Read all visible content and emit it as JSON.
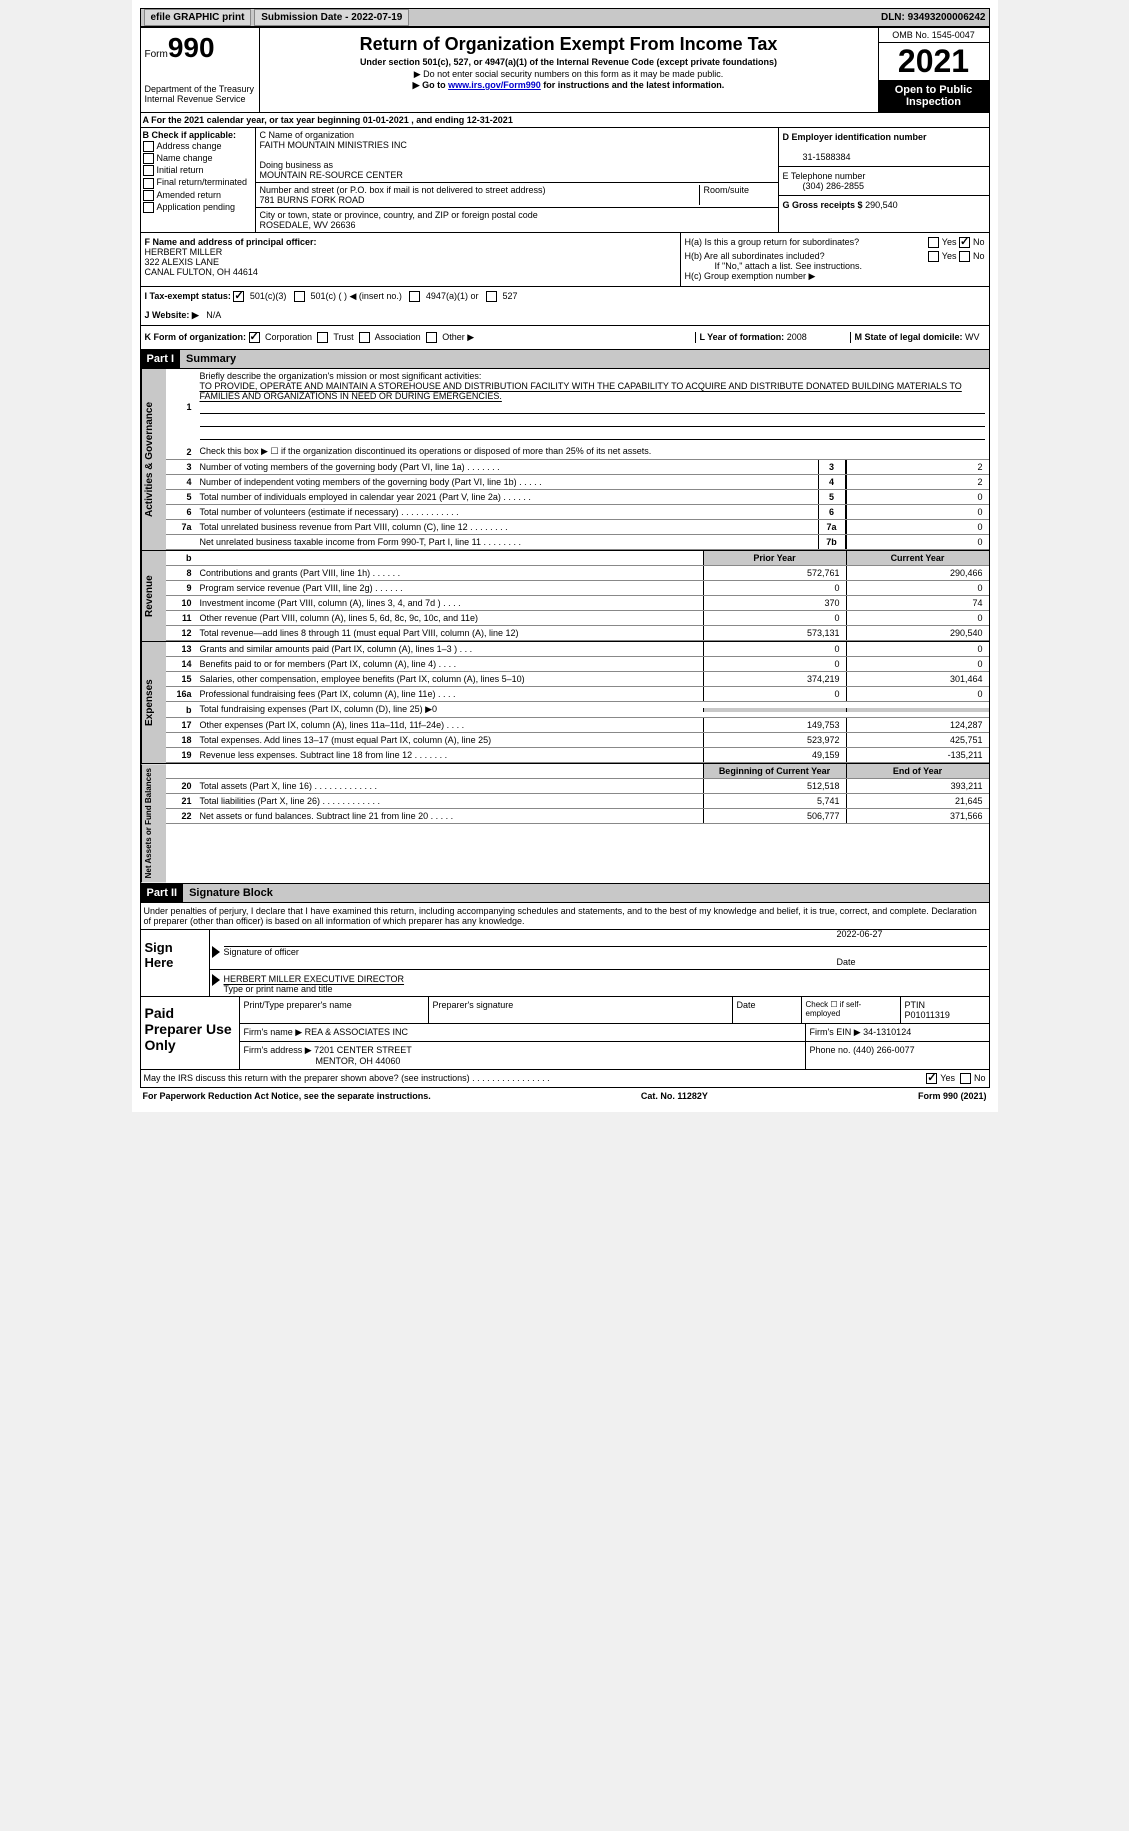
{
  "topbar": {
    "efile": "efile GRAPHIC print",
    "submission_label": "Submission Date - 2022-07-19",
    "dln_label": "DLN: 93493200006242"
  },
  "header": {
    "form_prefix": "Form",
    "form_number": "990",
    "dept": "Department of the Treasury",
    "irs": "Internal Revenue Service",
    "title": "Return of Organization Exempt From Income Tax",
    "subtitle": "Under section 501(c), 527, or 4947(a)(1) of the Internal Revenue Code (except private foundations)",
    "note1": "▶ Do not enter social security numbers on this form as it may be made public.",
    "note2_pre": "▶ Go to ",
    "note2_link": "www.irs.gov/Form990",
    "note2_post": " for instructions and the latest information.",
    "omb": "OMB No. 1545-0047",
    "year": "2021",
    "open_public": "Open to Public Inspection"
  },
  "row_a": {
    "text": "A For the 2021 calendar year, or tax year beginning 01-01-2021    , and ending 12-31-2021"
  },
  "section_b": {
    "label": "B Check if applicable:",
    "items": [
      "Address change",
      "Name change",
      "Initial return",
      "Final return/terminated",
      "Amended return",
      "Application pending"
    ]
  },
  "section_c": {
    "name_label": "C Name of organization",
    "name": "FAITH MOUNTAIN MINISTRIES INC",
    "dba_label": "Doing business as",
    "dba": "MOUNTAIN RE-SOURCE CENTER",
    "street_label": "Number and street (or P.O. box if mail is not delivered to street address)",
    "room_label": "Room/suite",
    "street": "781 BURNS FORK ROAD",
    "city_label": "City or town, state or province, country, and ZIP or foreign postal code",
    "city": "ROSEDALE, WV  26636"
  },
  "section_d": {
    "ein_label": "D Employer identification number",
    "ein": "31-1588384",
    "phone_label": "E Telephone number",
    "phone": "(304) 286-2855",
    "receipts_label": "G Gross receipts $",
    "receipts": "290,540"
  },
  "section_f": {
    "label": "F  Name and address of principal officer:",
    "name": "HERBERT MILLER",
    "addr1": "322 ALEXIS LANE",
    "addr2": "CANAL FULTON, OH  44614"
  },
  "section_h": {
    "ha_label": "H(a)  Is this a group return for subordinates?",
    "hb_label": "H(b)  Are all subordinates included?",
    "hb_note": "If \"No,\" attach a list. See instructions.",
    "hc_label": "H(c)  Group exemption number ▶",
    "yes": "Yes",
    "no": "No"
  },
  "section_i": {
    "label": "I  Tax-exempt status:",
    "opt1": "501(c)(3)",
    "opt2": "501(c) (  ) ◀ (insert no.)",
    "opt3": "4947(a)(1) or",
    "opt4": "527"
  },
  "section_j": {
    "label": "J  Website: ▶",
    "value": "N/A"
  },
  "section_k": {
    "label": "K Form of organization:",
    "opts": [
      "Corporation",
      "Trust",
      "Association",
      "Other ▶"
    ]
  },
  "section_l": {
    "year_label": "L Year of formation:",
    "year": "2008",
    "state_label": "M State of legal domicile:",
    "state": "WV"
  },
  "part1": {
    "header": "Part I",
    "title": "Summary",
    "line1_label": "Briefly describe the organization's mission or most significant activities:",
    "mission": "TO PROVIDE, OPERATE AND MAINTAIN A STOREHOUSE AND DISTRIBUTION FACILITY WITH THE CAPABILITY TO ACQUIRE AND DISTRIBUTE DONATED BUILDING MATERIALS TO FAMILIES AND ORGANIZATIONS IN NEED OR DURING EMERGENCIES.",
    "line2": "Check this box ▶ ☐ if the organization discontinued its operations or disposed of more than 25% of its net assets.",
    "side_gov": "Activities & Governance",
    "side_rev": "Revenue",
    "side_exp": "Expenses",
    "side_net": "Net Assets or Fund Balances",
    "prior_year": "Prior Year",
    "current_year": "Current Year",
    "begin_year": "Beginning of Current Year",
    "end_year": "End of Year",
    "rows_gov": [
      {
        "n": "3",
        "d": "Number of voting members of the governing body (Part VI, line 1a)   .    .    .    .    .    .    .",
        "box": "3",
        "v": "2"
      },
      {
        "n": "4",
        "d": "Number of independent voting members of the governing body (Part VI, line 1b)   .    .    .    .    .",
        "box": "4",
        "v": "2"
      },
      {
        "n": "5",
        "d": "Total number of individuals employed in calendar year 2021 (Part V, line 2a)   .    .    .    .    .    .",
        "box": "5",
        "v": "0"
      },
      {
        "n": "6",
        "d": "Total number of volunteers (estimate if necessary)    .    .    .    .    .    .    .    .    .    .    .    .",
        "box": "6",
        "v": "0"
      },
      {
        "n": "7a",
        "d": "Total unrelated business revenue from Part VIII, column (C), line 12   .    .    .    .    .    .    .    .",
        "box": "7a",
        "v": "0"
      },
      {
        "n": "",
        "d": "Net unrelated business taxable income from Form 990-T, Part I, line 11  .    .    .    .    .    .    .    .",
        "box": "7b",
        "v": "0"
      }
    ],
    "rows_rev": [
      {
        "n": "8",
        "d": "Contributions and grants (Part VIII, line 1h)   .    .    .    .    .    .",
        "p": "572,761",
        "c": "290,466"
      },
      {
        "n": "9",
        "d": "Program service revenue (Part VIII, line 2g)   .    .    .    .    .    .",
        "p": "0",
        "c": "0"
      },
      {
        "n": "10",
        "d": "Investment income (Part VIII, column (A), lines 3, 4, and 7d )   .    .    .    .",
        "p": "370",
        "c": "74"
      },
      {
        "n": "11",
        "d": "Other revenue (Part VIII, column (A), lines 5, 6d, 8c, 9c, 10c, and 11e)",
        "p": "0",
        "c": "0"
      },
      {
        "n": "12",
        "d": "Total revenue—add lines 8 through 11 (must equal Part VIII, column (A), line 12)",
        "p": "573,131",
        "c": "290,540"
      }
    ],
    "rows_exp": [
      {
        "n": "13",
        "d": "Grants and similar amounts paid (Part IX, column (A), lines 1–3 )  .    .    .",
        "p": "0",
        "c": "0"
      },
      {
        "n": "14",
        "d": "Benefits paid to or for members (Part IX, column (A), line 4)   .    .    .    .",
        "p": "0",
        "c": "0"
      },
      {
        "n": "15",
        "d": "Salaries, other compensation, employee benefits (Part IX, column (A), lines 5–10)",
        "p": "374,219",
        "c": "301,464"
      },
      {
        "n": "16a",
        "d": "Professional fundraising fees (Part IX, column (A), line 11e)   .    .    .    .",
        "p": "0",
        "c": "0"
      },
      {
        "n": "b",
        "d": "Total fundraising expenses (Part IX, column (D), line 25) ▶0",
        "p": "",
        "c": "",
        "gray": true
      },
      {
        "n": "17",
        "d": "Other expenses (Part IX, column (A), lines 11a–11d, 11f–24e)   .    .    .    .",
        "p": "149,753",
        "c": "124,287"
      },
      {
        "n": "18",
        "d": "Total expenses. Add lines 13–17 (must equal Part IX, column (A), line 25)",
        "p": "523,972",
        "c": "425,751"
      },
      {
        "n": "19",
        "d": "Revenue less expenses. Subtract line 18 from line 12  .    .    .    .    .    .    .",
        "p": "49,159",
        "c": "-135,211"
      }
    ],
    "rows_net": [
      {
        "n": "20",
        "d": "Total assets (Part X, line 16)  .    .    .    .    .    .    .    .    .    .    .    .    .",
        "p": "512,518",
        "c": "393,211"
      },
      {
        "n": "21",
        "d": "Total liabilities (Part X, line 26)  .    .    .    .    .    .    .    .    .    .    .    .",
        "p": "5,741",
        "c": "21,645"
      },
      {
        "n": "22",
        "d": "Net assets or fund balances. Subtract line 21 from line 20   .    .    .    .    .",
        "p": "506,777",
        "c": "371,566"
      }
    ]
  },
  "part2": {
    "header": "Part II",
    "title": "Signature Block",
    "declaration": "Under penalties of perjury, I declare that I have examined this return, including accompanying schedules and statements, and to the best of my knowledge and belief, it is true, correct, and complete. Declaration of preparer (other than officer) is based on all information of which preparer has any knowledge.",
    "sign_here": "Sign Here",
    "sig_label": "Signature of officer",
    "date_label": "Date",
    "sig_date": "2022-06-27",
    "officer_name": "HERBERT MILLER  EXECUTIVE DIRECTOR",
    "type_label": "Type or print name and title"
  },
  "preparer": {
    "title": "Paid Preparer Use Only",
    "print_label": "Print/Type preparer's name",
    "sig_label": "Preparer's signature",
    "date_label": "Date",
    "check_label": "Check ☐ if self-employed",
    "ptin_label": "PTIN",
    "ptin": "P01011319",
    "firm_name_label": "Firm's name    ▶",
    "firm_name": "REA & ASSOCIATES INC",
    "firm_ein_label": "Firm's EIN ▶",
    "firm_ein": "34-1310124",
    "firm_addr_label": "Firm's address ▶",
    "firm_addr1": "7201 CENTER STREET",
    "firm_addr2": "MENTOR, OH  44060",
    "phone_label": "Phone no.",
    "phone": "(440) 266-0077"
  },
  "footer": {
    "discuss": "May the IRS discuss this return with the preparer shown above? (see instructions)  .    .    .    .    .    .    .    .    .    .    .    .    .    .    .    .",
    "yes": "Yes",
    "no": "No",
    "paperwork": "For Paperwork Reduction Act Notice, see the separate instructions.",
    "catno": "Cat. No. 11282Y",
    "formid": "Form 990 (2021)"
  }
}
